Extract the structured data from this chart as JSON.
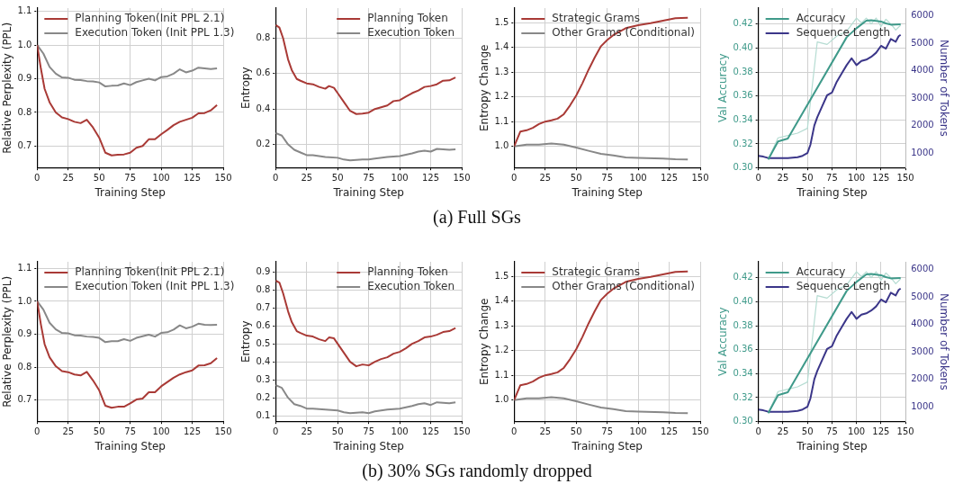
{
  "chart_data": [
    {
      "type": "line",
      "xlabel": "Training Step",
      "ylabel": "Relative Perplexity (PPL)",
      "xlim": [
        0,
        150
      ],
      "xticks": [
        0,
        25,
        50,
        75,
        100,
        125,
        150
      ],
      "ylim": [
        0.635,
        1.11
      ],
      "yticks": [
        0.7,
        0.8,
        0.9,
        {
          "value": 1,
          "label": "1.0"
        },
        1.1
      ],
      "grid": true,
      "legend": "top left",
      "annotations": [
        "(a) Full SGs"
      ],
      "series": [
        {
          "name": "Planning Token(Init PPL 2.1)",
          "color": "#a93a36",
          "x": [
            0,
            3,
            6,
            10,
            15,
            20,
            25,
            30,
            35,
            40,
            45,
            50,
            55,
            60,
            65,
            70,
            75,
            80,
            85,
            90,
            95,
            100,
            105,
            110,
            115,
            120,
            125,
            130,
            135,
            140,
            145
          ],
          "values": [
            1.0,
            0.93,
            0.87,
            0.83,
            0.8,
            0.785,
            0.78,
            0.772,
            0.768,
            0.778,
            0.755,
            0.725,
            0.68,
            0.672,
            0.674,
            0.675,
            0.68,
            0.695,
            0.7,
            0.72,
            0.72,
            0.735,
            0.748,
            0.762,
            0.772,
            0.778,
            0.784,
            0.797,
            0.798,
            0.806,
            0.822
          ]
        },
        {
          "name": "Execution Token (Init PPL 1.3)",
          "color": "#888888",
          "x": [
            0,
            5,
            10,
            15,
            20,
            25,
            30,
            35,
            40,
            45,
            50,
            55,
            60,
            65,
            70,
            75,
            80,
            85,
            90,
            95,
            100,
            105,
            110,
            115,
            120,
            125,
            130,
            135,
            140,
            145
          ],
          "values": [
            1.0,
            0.975,
            0.935,
            0.915,
            0.904,
            0.903,
            0.897,
            0.896,
            0.893,
            0.892,
            0.889,
            0.877,
            0.879,
            0.88,
            0.886,
            0.881,
            0.89,
            0.895,
            0.9,
            0.895,
            0.905,
            0.907,
            0.915,
            0.928,
            0.919,
            0.924,
            0.933,
            0.931,
            0.929,
            0.931
          ]
        }
      ]
    },
    {
      "type": "line",
      "xlabel": "Training Step",
      "ylabel": "Entropy",
      "xlim": [
        0,
        150
      ],
      "xticks": [
        0,
        25,
        50,
        75,
        100,
        125,
        150
      ],
      "ylim": [
        0.068,
        0.97
      ],
      "yticks": [
        0.2,
        0.4,
        0.6,
        0.8
      ],
      "grid": true,
      "legend": "top right",
      "series": [
        {
          "name": "Planning Token",
          "color": "#a93a36",
          "x": [
            0,
            3,
            6,
            10,
            13,
            17,
            20,
            25,
            30,
            35,
            40,
            43,
            47,
            50,
            55,
            60,
            65,
            70,
            75,
            80,
            85,
            90,
            95,
            100,
            105,
            110,
            115,
            120,
            125,
            130,
            135,
            140,
            145
          ],
          "values": [
            0.875,
            0.86,
            0.8,
            0.68,
            0.62,
            0.57,
            0.56,
            0.545,
            0.54,
            0.525,
            0.515,
            0.53,
            0.52,
            0.49,
            0.44,
            0.39,
            0.372,
            0.375,
            0.38,
            0.4,
            0.41,
            0.42,
            0.445,
            0.45,
            0.47,
            0.49,
            0.505,
            0.525,
            0.53,
            0.54,
            0.56,
            0.562,
            0.578
          ]
        },
        {
          "name": "Execution Token",
          "color": "#888888",
          "x": [
            0,
            5,
            10,
            15,
            20,
            25,
            30,
            40,
            50,
            55,
            60,
            70,
            75,
            80,
            90,
            100,
            110,
            115,
            120,
            125,
            130,
            140,
            145
          ],
          "values": [
            0.265,
            0.25,
            0.2,
            0.17,
            0.155,
            0.14,
            0.14,
            0.13,
            0.125,
            0.115,
            0.11,
            0.115,
            0.115,
            0.12,
            0.13,
            0.135,
            0.15,
            0.16,
            0.165,
            0.16,
            0.175,
            0.17,
            0.172
          ]
        }
      ]
    },
    {
      "type": "line",
      "xlabel": "Training Step",
      "ylabel": "Entropy Change",
      "xlim": [
        0,
        150
      ],
      "xticks": [
        0,
        25,
        50,
        75,
        100,
        125,
        150
      ],
      "ylim": [
        0.913,
        1.559
      ],
      "yticks": [
        {
          "value": 1,
          "label": "1.0"
        },
        1.1,
        1.2,
        1.3,
        1.4,
        1.5
      ],
      "grid": true,
      "legend": "top left",
      "series": [
        {
          "name": "Strategic Grams",
          "color": "#a93a36",
          "x": [
            0,
            5,
            10,
            15,
            20,
            25,
            30,
            35,
            40,
            45,
            50,
            55,
            60,
            65,
            70,
            75,
            80,
            90,
            100,
            110,
            120,
            130,
            140
          ],
          "values": [
            1.0,
            1.06,
            1.065,
            1.075,
            1.09,
            1.1,
            1.105,
            1.112,
            1.13,
            1.165,
            1.205,
            1.255,
            1.31,
            1.36,
            1.405,
            1.43,
            1.45,
            1.478,
            1.49,
            1.498,
            1.508,
            1.518,
            1.52
          ]
        },
        {
          "name": "Other Grams (Conditional)",
          "color": "#888888",
          "x": [
            0,
            10,
            20,
            30,
            40,
            50,
            60,
            70,
            80,
            90,
            100,
            120,
            130,
            140
          ],
          "values": [
            1.0,
            1.007,
            1.007,
            1.012,
            1.007,
            0.995,
            0.982,
            0.97,
            0.963,
            0.955,
            0.953,
            0.951,
            0.948,
            0.947
          ]
        }
      ]
    },
    {
      "type": "line",
      "xlabel": "Training Step",
      "ylabel": "Val Accuracy",
      "y2label": "Number of Tokens",
      "xlim": [
        0,
        150
      ],
      "xticks": [
        0,
        25,
        50,
        75,
        100,
        125,
        150
      ],
      "ylim": [
        0.3,
        0.4333
      ],
      "yticks": [
        {
          "value": 0.3,
          "label": "0.30"
        },
        0.32,
        0.34,
        0.36,
        0.38,
        {
          "value": 0.4,
          "label": "0.40"
        },
        0.42
      ],
      "y2lim": [
        461,
        6274
      ],
      "y2ticks": [
        1000,
        2000,
        3000,
        4000,
        5000,
        6000
      ],
      "grid": true,
      "legend": "top left",
      "series": [
        {
          "color": "#b5dcd2",
          "x": [
            10,
            20,
            30,
            40,
            50,
            60,
            70,
            80,
            90,
            100,
            105,
            110,
            115,
            120,
            125,
            130,
            135,
            140,
            145
          ],
          "values": [
            0.307,
            0.325,
            0.327,
            0.329,
            0.333,
            0.405,
            0.403,
            0.41,
            0.414,
            0.425,
            0.421,
            0.425,
            0.42,
            0.425,
            0.418,
            0.424,
            0.42,
            0.415,
            0.419
          ]
        },
        {
          "name": "Accuracy",
          "color": "#3f9a8a",
          "x": [
            10,
            20,
            30,
            90,
            100,
            110,
            115,
            125,
            130,
            135,
            145
          ],
          "values": [
            0.307,
            0.322,
            0.3245,
            0.409,
            0.4165,
            0.4228,
            0.4232,
            0.4221,
            0.4205,
            0.4195,
            0.4198
          ]
        },
        {
          "name": "Sequence Length",
          "color": "#3b3689",
          "axis": "y2",
          "x": [
            0,
            5,
            10,
            20,
            30,
            40,
            45,
            50,
            53,
            57,
            60,
            65,
            70,
            75,
            80,
            85,
            90,
            95,
            100,
            105,
            110,
            115,
            120,
            125,
            130,
            135,
            140,
            143,
            145
          ],
          "values": [
            900,
            870,
            820,
            820,
            820,
            850,
            900,
            1000,
            1300,
            2000,
            2300,
            2700,
            3100,
            3200,
            3600,
            3900,
            4200,
            4450,
            4200,
            4350,
            4400,
            4500,
            4650,
            4900,
            4800,
            5150,
            5050,
            5250,
            5300
          ]
        }
      ]
    },
    {
      "type": "line",
      "xlabel": "Training Step",
      "ylabel": "Relative Perplexity (PPL)",
      "xlim": [
        0,
        150
      ],
      "xticks": [
        0,
        25,
        50,
        75,
        100,
        125,
        150
      ],
      "ylim": [
        0.635,
        1.12
      ],
      "yticks": [
        0.7,
        0.8,
        0.9,
        {
          "value": 1,
          "label": "1.0"
        },
        1.1
      ],
      "grid": true,
      "legend": "top left",
      "annotations": [
        "(b) 30% SGs randomly dropped"
      ],
      "series": [
        {
          "name": "Planning Token(Init PPL 2.1)",
          "color": "#a93a36",
          "x": [
            0,
            3,
            6,
            10,
            15,
            20,
            25,
            30,
            35,
            40,
            45,
            50,
            55,
            60,
            65,
            70,
            75,
            80,
            85,
            90,
            95,
            100,
            105,
            110,
            115,
            120,
            125,
            130,
            135,
            140,
            145
          ],
          "values": [
            1.0,
            0.93,
            0.87,
            0.83,
            0.803,
            0.788,
            0.785,
            0.778,
            0.775,
            0.786,
            0.76,
            0.73,
            0.683,
            0.677,
            0.68,
            0.68,
            0.69,
            0.702,
            0.705,
            0.724,
            0.724,
            0.742,
            0.755,
            0.768,
            0.778,
            0.785,
            0.79,
            0.805,
            0.806,
            0.812,
            0.828
          ]
        },
        {
          "name": "Execution Token (Init PPL 1.3)",
          "color": "#888888",
          "x": [
            0,
            5,
            10,
            15,
            20,
            25,
            30,
            35,
            40,
            45,
            50,
            55,
            60,
            65,
            70,
            75,
            80,
            85,
            90,
            95,
            100,
            105,
            110,
            115,
            120,
            125,
            130,
            135,
            140,
            145
          ],
          "values": [
            1.0,
            0.975,
            0.935,
            0.915,
            0.904,
            0.903,
            0.897,
            0.896,
            0.893,
            0.892,
            0.889,
            0.876,
            0.879,
            0.879,
            0.885,
            0.88,
            0.889,
            0.894,
            0.899,
            0.893,
            0.904,
            0.906,
            0.914,
            0.927,
            0.918,
            0.923,
            0.932,
            0.929,
            0.928,
            0.929
          ]
        }
      ]
    },
    {
      "type": "line",
      "xlabel": "Training Step",
      "ylabel": "Entropy",
      "xlim": [
        0,
        150
      ],
      "xticks": [
        0,
        25,
        50,
        75,
        100,
        125,
        150
      ],
      "ylim": [
        0.068,
        0.955
      ],
      "yticks": [
        0.1,
        0.2,
        0.3,
        0.4,
        0.5,
        0.6,
        0.7,
        0.8,
        0.9
      ],
      "grid": true,
      "legend": "top right",
      "series": [
        {
          "name": "Planning Token",
          "color": "#a93a36",
          "x": [
            0,
            3,
            6,
            10,
            13,
            17,
            20,
            25,
            30,
            35,
            40,
            43,
            47,
            50,
            55,
            60,
            65,
            70,
            75,
            80,
            85,
            90,
            95,
            100,
            105,
            110,
            115,
            120,
            125,
            130,
            135,
            140,
            145
          ],
          "values": [
            0.85,
            0.84,
            0.78,
            0.68,
            0.62,
            0.57,
            0.56,
            0.545,
            0.54,
            0.525,
            0.515,
            0.535,
            0.53,
            0.5,
            0.45,
            0.4,
            0.375,
            0.385,
            0.38,
            0.4,
            0.415,
            0.425,
            0.445,
            0.455,
            0.475,
            0.5,
            0.515,
            0.535,
            0.54,
            0.55,
            0.565,
            0.57,
            0.587
          ]
        },
        {
          "name": "Execution Token",
          "color": "#888888",
          "x": [
            0,
            5,
            10,
            15,
            20,
            25,
            30,
            40,
            50,
            55,
            60,
            70,
            75,
            80,
            90,
            100,
            110,
            115,
            120,
            125,
            130,
            140,
            145
          ],
          "values": [
            0.27,
            0.255,
            0.2,
            0.165,
            0.155,
            0.14,
            0.14,
            0.135,
            0.13,
            0.12,
            0.115,
            0.12,
            0.115,
            0.125,
            0.135,
            0.14,
            0.155,
            0.165,
            0.17,
            0.16,
            0.175,
            0.17,
            0.175
          ]
        }
      ]
    },
    {
      "type": "line",
      "xlabel": "Training Step",
      "ylabel": "Entropy Change",
      "xlim": [
        0,
        150
      ],
      "xticks": [
        0,
        25,
        50,
        75,
        100,
        125,
        150
      ],
      "ylim": [
        0.913,
        1.559
      ],
      "yticks": [
        {
          "value": 1,
          "label": "1.0"
        },
        1.1,
        1.2,
        1.3,
        1.4,
        1.5
      ],
      "grid": true,
      "legend": "top left",
      "series": [
        {
          "name": "Strategic Grams",
          "color": "#a93a36",
          "x": [
            0,
            5,
            10,
            15,
            20,
            25,
            30,
            35,
            40,
            45,
            50,
            55,
            60,
            65,
            70,
            75,
            80,
            90,
            100,
            110,
            120,
            130,
            140
          ],
          "values": [
            1.0,
            1.06,
            1.065,
            1.075,
            1.09,
            1.1,
            1.105,
            1.112,
            1.13,
            1.165,
            1.205,
            1.255,
            1.31,
            1.36,
            1.405,
            1.43,
            1.45,
            1.478,
            1.49,
            1.498,
            1.508,
            1.518,
            1.52
          ]
        },
        {
          "name": "Other Grams (Conditional)",
          "color": "#888888",
          "x": [
            0,
            10,
            20,
            30,
            40,
            50,
            60,
            70,
            80,
            90,
            100,
            120,
            130,
            140
          ],
          "values": [
            1.0,
            1.007,
            1.007,
            1.012,
            1.007,
            0.995,
            0.982,
            0.97,
            0.963,
            0.955,
            0.953,
            0.951,
            0.948,
            0.947
          ]
        }
      ]
    },
    {
      "type": "line",
      "xlabel": "Training Step",
      "ylabel": "Val Accuracy",
      "y2label": "Number of Tokens",
      "xlim": [
        0,
        150
      ],
      "xticks": [
        0,
        25,
        50,
        75,
        100,
        125,
        150
      ],
      "ylim": [
        0.3,
        0.4333
      ],
      "yticks": [
        {
          "value": 0.3,
          "label": "0.30"
        },
        0.32,
        0.34,
        0.36,
        0.38,
        {
          "value": 0.4,
          "label": "0.40"
        },
        0.42
      ],
      "y2lim": [
        461,
        6274
      ],
      "y2ticks": [
        1000,
        2000,
        3000,
        4000,
        5000,
        6000
      ],
      "grid": true,
      "legend": "top left",
      "series": [
        {
          "color": "#b5dcd2",
          "x": [
            10,
            20,
            30,
            40,
            50,
            60,
            70,
            80,
            90,
            100,
            105,
            110,
            115,
            120,
            125,
            130,
            135,
            140,
            145
          ],
          "values": [
            0.307,
            0.325,
            0.327,
            0.329,
            0.333,
            0.405,
            0.403,
            0.41,
            0.414,
            0.425,
            0.421,
            0.425,
            0.42,
            0.425,
            0.418,
            0.424,
            0.42,
            0.415,
            0.419
          ]
        },
        {
          "name": "Accuracy",
          "color": "#3f9a8a",
          "x": [
            10,
            20,
            30,
            90,
            100,
            110,
            115,
            125,
            130,
            135,
            145
          ],
          "values": [
            0.307,
            0.322,
            0.3245,
            0.409,
            0.4165,
            0.4228,
            0.4232,
            0.4221,
            0.4205,
            0.4195,
            0.4198
          ]
        },
        {
          "name": "Sequence Length",
          "color": "#3b3689",
          "axis": "y2",
          "x": [
            0,
            5,
            10,
            20,
            30,
            40,
            45,
            50,
            53,
            57,
            60,
            65,
            70,
            75,
            80,
            85,
            90,
            95,
            100,
            105,
            110,
            115,
            120,
            125,
            130,
            135,
            140,
            143,
            145
          ],
          "values": [
            900,
            870,
            820,
            820,
            820,
            850,
            900,
            1000,
            1300,
            2000,
            2300,
            2700,
            3100,
            3200,
            3600,
            3900,
            4200,
            4450,
            4200,
            4350,
            4400,
            4500,
            4650,
            4900,
            4800,
            5150,
            5050,
            5250,
            5300
          ]
        }
      ]
    }
  ]
}
